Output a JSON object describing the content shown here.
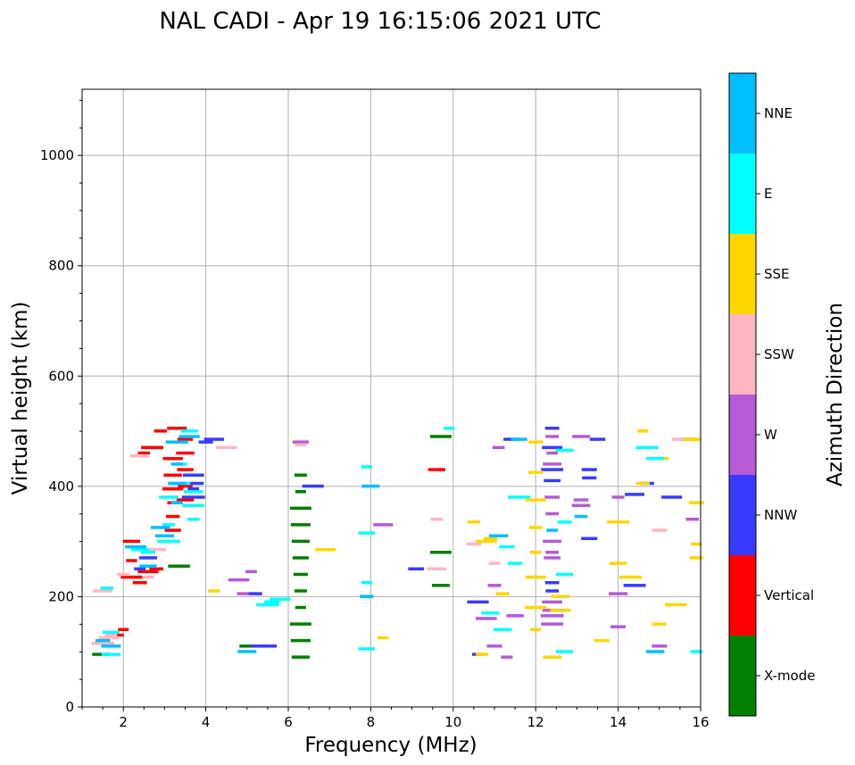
{
  "chart_data": {
    "type": "scatter",
    "title": "NAL CADI - Apr 19 16:15:06 2021 UTC",
    "xlabel": "Frequency (MHz)",
    "ylabel": "Virtual height (km)",
    "xlim": [
      1,
      16
    ],
    "ylim": [
      0,
      1120
    ],
    "xticks": [
      "2",
      "4",
      "6",
      "8",
      "10",
      "12",
      "14",
      "16"
    ],
    "yticks": [
      "0",
      "200",
      "400",
      "600",
      "800",
      "1000"
    ],
    "grid": true,
    "colorbar": {
      "label": "Azimuth Direction",
      "categories": [
        {
          "name": "X-mode",
          "color": "#008000"
        },
        {
          "name": "Vertical",
          "color": "#ff0000"
        },
        {
          "name": "NNW",
          "color": "#3a3aff"
        },
        {
          "name": "W",
          "color": "#b65ad6"
        },
        {
          "name": "SSW",
          "color": "#ffb6c1"
        },
        {
          "name": "SSE",
          "color": "#ffd700"
        },
        {
          "name": "E",
          "color": "#00ffff"
        },
        {
          "name": "NNE",
          "color": "#00bfff"
        }
      ]
    },
    "series": [
      {
        "name": "X-mode",
        "points": [
          [
            6.3,
            420
          ],
          [
            6.3,
            390
          ],
          [
            6.3,
            360
          ],
          [
            6.3,
            330
          ],
          [
            6.3,
            300
          ],
          [
            6.3,
            270
          ],
          [
            6.3,
            240
          ],
          [
            6.3,
            210
          ],
          [
            6.3,
            180
          ],
          [
            6.3,
            150
          ],
          [
            6.3,
            120
          ],
          [
            6.3,
            90
          ],
          [
            9.7,
            490
          ],
          [
            9.7,
            280
          ],
          [
            9.7,
            220
          ],
          [
            12.0,
            280
          ],
          [
            3.35,
            255
          ],
          [
            1.45,
            95
          ],
          [
            5.0,
            110
          ]
        ]
      },
      {
        "name": "Vertical",
        "points": [
          [
            3.3,
            505
          ],
          [
            3.5,
            485
          ],
          [
            3.5,
            460
          ],
          [
            3.5,
            430
          ],
          [
            3.5,
            400
          ],
          [
            3.5,
            375
          ],
          [
            3.2,
            450
          ],
          [
            3.2,
            420
          ],
          [
            3.2,
            395
          ],
          [
            3.2,
            370
          ],
          [
            3.2,
            345
          ],
          [
            3.2,
            320
          ],
          [
            2.2,
            235
          ],
          [
            2.4,
            225
          ],
          [
            2.6,
            245
          ],
          [
            2.8,
            250
          ],
          [
            2.2,
            265
          ],
          [
            2.2,
            300
          ],
          [
            2.0,
            140
          ],
          [
            1.85,
            130
          ],
          [
            9.6,
            430
          ],
          [
            2.9,
            500
          ],
          [
            2.5,
            460
          ],
          [
            2.7,
            470
          ]
        ]
      },
      {
        "name": "NNW",
        "points": [
          [
            4.2,
            485
          ],
          [
            4.0,
            480
          ],
          [
            3.7,
            420
          ],
          [
            3.7,
            405
          ],
          [
            3.7,
            395
          ],
          [
            3.7,
            380
          ],
          [
            6.6,
            400
          ],
          [
            9.1,
            250
          ],
          [
            12.4,
            470
          ],
          [
            12.4,
            430
          ],
          [
            12.4,
            410
          ],
          [
            12.4,
            225
          ],
          [
            12.4,
            210
          ],
          [
            13.3,
            430
          ],
          [
            13.3,
            415
          ],
          [
            13.3,
            305
          ],
          [
            13.5,
            485
          ],
          [
            14.4,
            385
          ],
          [
            14.7,
            405
          ],
          [
            15.3,
            380
          ],
          [
            14.4,
            220
          ],
          [
            5.3,
            110
          ],
          [
            5.5,
            110
          ],
          [
            5.2,
            205
          ],
          [
            2.6,
            270
          ],
          [
            2.4,
            250
          ],
          [
            10.6,
            190
          ],
          [
            10.6,
            95
          ],
          [
            11.4,
            485
          ],
          [
            12.4,
            505
          ]
        ]
      },
      {
        "name": "W",
        "points": [
          [
            6.3,
            480
          ],
          [
            8.3,
            330
          ],
          [
            12.4,
            490
          ],
          [
            12.4,
            460
          ],
          [
            12.4,
            440
          ],
          [
            12.4,
            380
          ],
          [
            12.4,
            350
          ],
          [
            12.4,
            300
          ],
          [
            12.4,
            280
          ],
          [
            12.4,
            270
          ],
          [
            12.4,
            190
          ],
          [
            12.4,
            175
          ],
          [
            12.4,
            165
          ],
          [
            12.4,
            150
          ],
          [
            13.1,
            375
          ],
          [
            13.1,
            365
          ],
          [
            13.1,
            490
          ],
          [
            14.0,
            380
          ],
          [
            14.0,
            205
          ],
          [
            14.0,
            145
          ],
          [
            15.7,
            485
          ],
          [
            15.8,
            340
          ],
          [
            15.0,
            110
          ],
          [
            11.1,
            470
          ],
          [
            11.5,
            165
          ],
          [
            10.8,
            160
          ],
          [
            4.8,
            230
          ],
          [
            4.9,
            205
          ],
          [
            5.1,
            245
          ],
          [
            11.0,
            220
          ],
          [
            11.3,
            90
          ],
          [
            11.0,
            110
          ]
        ]
      },
      {
        "name": "SSW",
        "points": [
          [
            1.65,
            125
          ],
          [
            1.7,
            130
          ],
          [
            1.5,
            115
          ],
          [
            2.0,
            240
          ],
          [
            2.6,
            235
          ],
          [
            2.8,
            285
          ],
          [
            9.6,
            340
          ],
          [
            9.6,
            250
          ],
          [
            15.0,
            320
          ],
          [
            2.4,
            455
          ],
          [
            4.5,
            470
          ],
          [
            15.5,
            485
          ],
          [
            1.5,
            210
          ],
          [
            6.3,
            475
          ],
          [
            10.5,
            295
          ],
          [
            11.0,
            260
          ]
        ]
      },
      {
        "name": "SSE",
        "points": [
          [
            4.2,
            210
          ],
          [
            8.3,
            125
          ],
          [
            12.4,
            90
          ],
          [
            12.0,
            480
          ],
          [
            12.0,
            425
          ],
          [
            12.0,
            375
          ],
          [
            12.0,
            325
          ],
          [
            12.0,
            280
          ],
          [
            12.0,
            235
          ],
          [
            12.0,
            180
          ],
          [
            12.0,
            140
          ],
          [
            14.6,
            500
          ],
          [
            14.6,
            405
          ],
          [
            15.0,
            450
          ],
          [
            15.0,
            150
          ],
          [
            15.4,
            185
          ],
          [
            15.8,
            485
          ],
          [
            15.9,
            370
          ],
          [
            15.9,
            295
          ],
          [
            15.9,
            270
          ],
          [
            14.0,
            335
          ],
          [
            14.0,
            260
          ],
          [
            14.3,
            235
          ],
          [
            13.6,
            120
          ],
          [
            10.9,
            305
          ],
          [
            11.2,
            205
          ],
          [
            10.5,
            335
          ],
          [
            10.8,
            300
          ],
          [
            6.9,
            285
          ],
          [
            10.7,
            95
          ],
          [
            12.6,
            175
          ],
          [
            12.6,
            200
          ]
        ]
      },
      {
        "name": "E",
        "points": [
          [
            3.7,
            340
          ],
          [
            3.7,
            365
          ],
          [
            3.7,
            390
          ],
          [
            3.6,
            500
          ],
          [
            3.4,
            440
          ],
          [
            3.4,
            405
          ],
          [
            3.1,
            380
          ],
          [
            3.1,
            330
          ],
          [
            3.1,
            300
          ],
          [
            2.4,
            285
          ],
          [
            2.6,
            280
          ],
          [
            1.7,
            135
          ],
          [
            1.7,
            95
          ],
          [
            1.6,
            215
          ],
          [
            5.5,
            185
          ],
          [
            5.6,
            190
          ],
          [
            5.8,
            195
          ],
          [
            7.9,
            435
          ],
          [
            7.9,
            315
          ],
          [
            7.9,
            225
          ],
          [
            7.9,
            105
          ],
          [
            12.7,
            465
          ],
          [
            12.7,
            335
          ],
          [
            12.7,
            240
          ],
          [
            12.7,
            100
          ],
          [
            14.7,
            470
          ],
          [
            14.9,
            450
          ],
          [
            15.9,
            100
          ],
          [
            11.3,
            290
          ],
          [
            11.6,
            380
          ],
          [
            11.5,
            260
          ],
          [
            10.9,
            170
          ],
          [
            11.2,
            140
          ],
          [
            9.9,
            505
          ]
        ]
      },
      {
        "name": "NNE",
        "points": [
          [
            3.6,
            490
          ],
          [
            3.3,
            480
          ],
          [
            3.3,
            440
          ],
          [
            3.3,
            405
          ],
          [
            3.3,
            370
          ],
          [
            3.0,
            310
          ],
          [
            2.9,
            325
          ],
          [
            2.6,
            255
          ],
          [
            2.3,
            290
          ],
          [
            1.7,
            110
          ],
          [
            1.5,
            120
          ],
          [
            12.4,
            320
          ],
          [
            13.1,
            345
          ],
          [
            14.9,
            100
          ],
          [
            7.9,
            200
          ],
          [
            5.0,
            100
          ],
          [
            11.6,
            485
          ],
          [
            11.1,
            310
          ],
          [
            8.0,
            400
          ]
        ]
      }
    ]
  }
}
